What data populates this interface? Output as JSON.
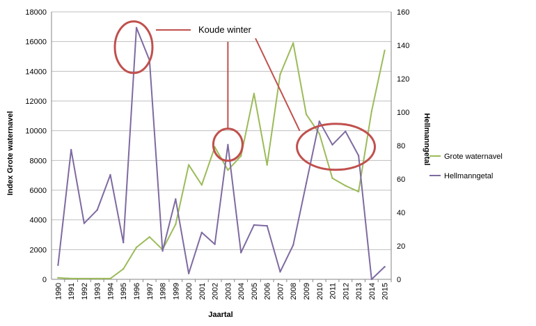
{
  "chart_data": {
    "type": "line",
    "title": "",
    "xlabel": "Jaartal",
    "ylabel_left": "Index Grote waternavel",
    "ylabel_right": "Hellmanngetal",
    "categories": [
      "1990",
      "1991",
      "1992",
      "1993",
      "1994",
      "1995",
      "1996",
      "1997",
      "1998",
      "1999",
      "2000",
      "2001",
      "2002",
      "2003",
      "2004",
      "2005",
      "2006",
      "2007",
      "2008",
      "2009",
      "2010",
      "2011",
      "2012",
      "2013",
      "2014",
      "2015"
    ],
    "ylim_left": [
      0,
      18000
    ],
    "yticks_left": [
      0,
      2000,
      4000,
      6000,
      8000,
      10000,
      12000,
      14000,
      16000,
      18000
    ],
    "ylim_right": [
      0,
      160
    ],
    "yticks_right": [
      0,
      20,
      40,
      60,
      80,
      100,
      120,
      140,
      160
    ],
    "grid": true,
    "legend_position": "right",
    "series": [
      {
        "name": "Grote waternavel",
        "axis": "left",
        "color": "#9bbb59",
        "values": [
          100,
          50,
          50,
          50,
          50,
          700,
          2150,
          2850,
          2000,
          3700,
          7700,
          6350,
          8900,
          7350,
          8300,
          12500,
          7700,
          13800,
          15900,
          11100,
          9800,
          6800,
          6300,
          5900,
          11300,
          15400
        ]
      },
      {
        "name": "Hellmanngetal",
        "axis": "right",
        "color": "#7e6aa0",
        "values": [
          8.5,
          77.5,
          33.5,
          41.5,
          62.5,
          22,
          150.5,
          131,
          17,
          48,
          3.5,
          28,
          21,
          80.5,
          16,
          32.5,
          32,
          4.5,
          20.5,
          57.5,
          94.5,
          80.5,
          88.5,
          74,
          0,
          7.5
        ]
      }
    ],
    "annotations": {
      "label": "Koude winter",
      "highlight_color": "#c0504d"
    }
  }
}
